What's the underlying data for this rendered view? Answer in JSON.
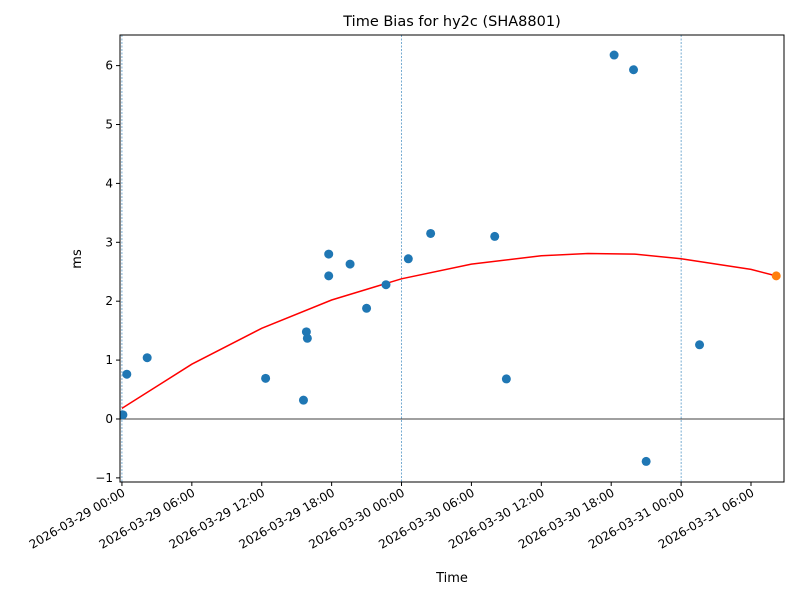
{
  "chart_data": {
    "type": "scatter",
    "title": "Time Bias for hy2c (SHA8801)",
    "xlabel": "Time",
    "ylabel": "ms",
    "x_range": [
      "2026-03-28T23:50:00",
      "2026-03-31T08:50:00"
    ],
    "ylim": [
      -1.07,
      6.52
    ],
    "x_ticks": [
      "2026-03-29 00:00",
      "2026-03-29 06:00",
      "2026-03-29 12:00",
      "2026-03-29 18:00",
      "2026-03-30 00:00",
      "2026-03-30 06:00",
      "2026-03-30 12:00",
      "2026-03-30 18:00",
      "2026-03-31 00:00",
      "2026-03-31 06:00"
    ],
    "y_ticks": [
      -1,
      0,
      1,
      2,
      3,
      4,
      5,
      6
    ],
    "day_boundaries": [
      "2026-03-29T00:00:00",
      "2026-03-30T00:00:00",
      "2026-03-31T00:00:00"
    ],
    "zero_line": 0,
    "grid": false,
    "series": [
      {
        "color": "#1f77b4",
        "points": [
          {
            "x": "2026-03-29T00:05:00",
            "y": 0.07
          },
          {
            "x": "2026-03-29T00:25:00",
            "y": 0.76
          },
          {
            "x": "2026-03-29T02:10:00",
            "y": 1.04
          },
          {
            "x": "2026-03-29T12:20:00",
            "y": 0.69
          },
          {
            "x": "2026-03-29T15:35:00",
            "y": 0.32
          },
          {
            "x": "2026-03-29T15:50:00",
            "y": 1.48
          },
          {
            "x": "2026-03-29T15:55:00",
            "y": 1.37
          },
          {
            "x": "2026-03-29T17:45:00",
            "y": 2.8
          },
          {
            "x": "2026-03-29T17:45:00",
            "y": 2.43
          },
          {
            "x": "2026-03-29T19:35:00",
            "y": 2.63
          },
          {
            "x": "2026-03-29T21:00:00",
            "y": 1.88
          },
          {
            "x": "2026-03-29T22:40:00",
            "y": 2.28
          },
          {
            "x": "2026-03-30T00:35:00",
            "y": 2.72
          },
          {
            "x": "2026-03-30T02:30:00",
            "y": 3.15
          },
          {
            "x": "2026-03-30T08:00:00",
            "y": 3.1
          },
          {
            "x": "2026-03-30T09:00:00",
            "y": 0.68
          },
          {
            "x": "2026-03-30T18:15:00",
            "y": 6.18
          },
          {
            "x": "2026-03-30T19:55:00",
            "y": 5.93
          },
          {
            "x": "2026-03-30T21:00:00",
            "y": -0.72
          },
          {
            "x": "2026-03-31T01:35:00",
            "y": 1.26
          }
        ]
      },
      {
        "color": "#ff7f0e",
        "points": [
          {
            "x": "2026-03-31T08:10:00",
            "y": 2.43
          }
        ]
      }
    ],
    "fit_curve": {
      "color": "#ff0000",
      "points": [
        {
          "x": "2026-03-29T00:00:00",
          "y": 0.18
        },
        {
          "x": "2026-03-29T06:00:00",
          "y": 0.93
        },
        {
          "x": "2026-03-29T12:00:00",
          "y": 1.54
        },
        {
          "x": "2026-03-29T18:00:00",
          "y": 2.02
        },
        {
          "x": "2026-03-30T00:00:00",
          "y": 2.38
        },
        {
          "x": "2026-03-30T06:00:00",
          "y": 2.63
        },
        {
          "x": "2026-03-30T12:00:00",
          "y": 2.77
        },
        {
          "x": "2026-03-30T16:00:00",
          "y": 2.81
        },
        {
          "x": "2026-03-30T20:00:00",
          "y": 2.8
        },
        {
          "x": "2026-03-31T00:00:00",
          "y": 2.72
        },
        {
          "x": "2026-03-31T06:00:00",
          "y": 2.54
        },
        {
          "x": "2026-03-31T08:10:00",
          "y": 2.43
        }
      ]
    }
  }
}
